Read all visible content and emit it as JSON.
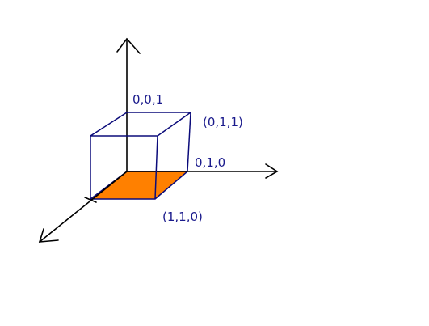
{
  "colors": {
    "axis": "#000000",
    "cube_edge": "#0b0b7a",
    "face_fill": "#ff8000",
    "label": "#1a1a8c"
  },
  "labels": {
    "p001": "0,0,1",
    "p011": "(0,1,1)",
    "p010": "0,1,0",
    "p110": "(1,1,0)"
  }
}
